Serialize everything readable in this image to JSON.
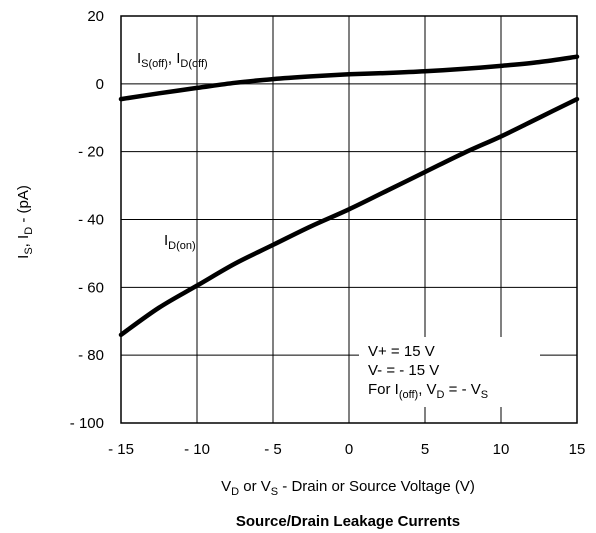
{
  "chart_data": {
    "type": "line",
    "title": "Source/Drain Leakage Currents",
    "xlabel": {
      "a": "V",
      "a_sub": "D",
      "b": " or V",
      "b_sub": "S",
      "c": " - Drain or Source Voltage (V)"
    },
    "ylabel": {
      "a": "I",
      "a_sub": "S",
      "b": ", I",
      "b_sub": "D",
      "c": " - (pA)"
    },
    "xlim": [
      -15,
      15
    ],
    "ylim": [
      -100,
      20
    ],
    "x_ticks": [
      -15,
      -10,
      -5,
      0,
      5,
      10,
      15
    ],
    "y_ticks": [
      20,
      0,
      -20,
      -40,
      -60,
      -80,
      -100
    ],
    "x_tick_labels": [
      "- 15",
      "- 10",
      "- 5",
      "0",
      "5",
      "10",
      "15"
    ],
    "y_tick_labels": [
      "20",
      "0",
      "- 20",
      "- 40",
      "- 60",
      "- 80",
      "- 100"
    ],
    "grid": true,
    "series": [
      {
        "name": "IS(off), ID(off)",
        "x": [
          -15,
          -12.5,
          -10,
          -7.5,
          -5,
          -2.5,
          0,
          2.5,
          5,
          7.5,
          10,
          12.5,
          15
        ],
        "y": [
          -4.5,
          -2.8,
          -1.2,
          0.3,
          1.4,
          2.2,
          2.8,
          3.2,
          3.7,
          4.4,
          5.3,
          6.4,
          8
        ]
      },
      {
        "name": "ID(on)",
        "x": [
          -15,
          -12.5,
          -10,
          -7.5,
          -5,
          -2.5,
          0,
          2.5,
          5,
          7.5,
          10,
          12.5,
          15
        ],
        "y": [
          -74,
          -66,
          -59.5,
          -53,
          -47.5,
          -42,
          -37,
          -31.5,
          -26,
          -20.5,
          -15.5,
          -10,
          -4.5
        ]
      }
    ],
    "annotations": {
      "off_label": {
        "a": "I",
        "a_sub": "S(off)",
        "b": ", I",
        "b_sub": "D(off)"
      },
      "on_label": {
        "a": "I",
        "a_sub": "D(on)"
      },
      "conditions": {
        "line1": "V+ = 15 V",
        "line2": "V-  = - 15 V",
        "line3": {
          "a": "For I",
          "a_sub": "(off)",
          "b": ", V",
          "b_sub": "D",
          "c": " = - V",
          "c_sub": "S"
        }
      }
    },
    "colors": {
      "line": "#000000",
      "grid": "#000000",
      "background": "#ffffff"
    }
  }
}
